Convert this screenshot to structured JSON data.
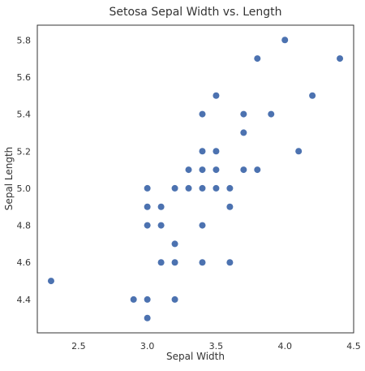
{
  "chart_data": {
    "type": "scatter",
    "title": "Setosa Sepal Width vs. Length",
    "xlabel": "Sepal Width",
    "ylabel": "Sepal Length",
    "xlim": [
      2.2,
      4.5
    ],
    "ylim": [
      4.22,
      5.88
    ],
    "xticks": [
      "2.5",
      "3.0",
      "3.5",
      "4.0",
      "4.5"
    ],
    "yticks": [
      "4.4",
      "4.6",
      "4.8",
      "5.0",
      "5.2",
      "5.4",
      "5.6",
      "5.8"
    ],
    "grid": false,
    "marker_color": "#4c72b0",
    "points": [
      {
        "x": 2.3,
        "y": 4.5
      },
      {
        "x": 2.9,
        "y": 4.4
      },
      {
        "x": 3.0,
        "y": 4.3
      },
      {
        "x": 3.0,
        "y": 4.4
      },
      {
        "x": 3.0,
        "y": 4.8
      },
      {
        "x": 3.0,
        "y": 4.9
      },
      {
        "x": 3.0,
        "y": 5.0
      },
      {
        "x": 3.1,
        "y": 4.6
      },
      {
        "x": 3.1,
        "y": 4.8
      },
      {
        "x": 3.1,
        "y": 4.9
      },
      {
        "x": 3.2,
        "y": 4.4
      },
      {
        "x": 3.2,
        "y": 4.6
      },
      {
        "x": 3.2,
        "y": 4.7
      },
      {
        "x": 3.2,
        "y": 5.0
      },
      {
        "x": 3.3,
        "y": 5.0
      },
      {
        "x": 3.3,
        "y": 5.1
      },
      {
        "x": 3.4,
        "y": 4.6
      },
      {
        "x": 3.4,
        "y": 4.8
      },
      {
        "x": 3.4,
        "y": 5.0
      },
      {
        "x": 3.4,
        "y": 5.1
      },
      {
        "x": 3.4,
        "y": 5.2
      },
      {
        "x": 3.4,
        "y": 5.4
      },
      {
        "x": 3.5,
        "y": 5.0
      },
      {
        "x": 3.5,
        "y": 5.1
      },
      {
        "x": 3.5,
        "y": 5.2
      },
      {
        "x": 3.5,
        "y": 5.5
      },
      {
        "x": 3.6,
        "y": 4.6
      },
      {
        "x": 3.6,
        "y": 4.9
      },
      {
        "x": 3.6,
        "y": 5.0
      },
      {
        "x": 3.7,
        "y": 5.1
      },
      {
        "x": 3.7,
        "y": 5.3
      },
      {
        "x": 3.7,
        "y": 5.4
      },
      {
        "x": 3.8,
        "y": 5.1
      },
      {
        "x": 3.8,
        "y": 5.7
      },
      {
        "x": 3.9,
        "y": 5.4
      },
      {
        "x": 4.0,
        "y": 5.8
      },
      {
        "x": 4.1,
        "y": 5.2
      },
      {
        "x": 4.2,
        "y": 5.5
      },
      {
        "x": 4.4,
        "y": 5.7
      }
    ]
  }
}
